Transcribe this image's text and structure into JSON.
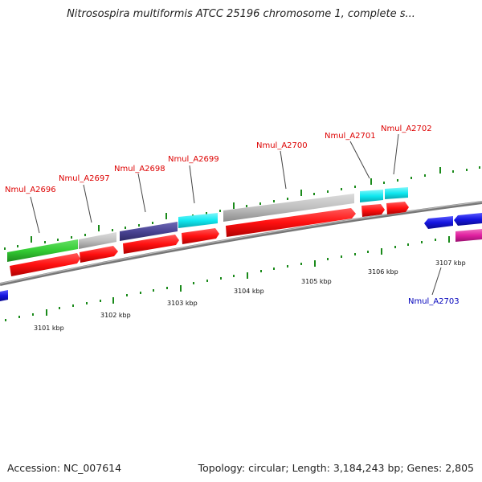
{
  "header": {
    "title": "Nitrosospira multiformis ATCC 25196 chromosome 1, complete s..."
  },
  "footer": {
    "accession": "Accession: NC_007614",
    "summary": "Topology: circular; Length: 3,184,243 bp; Genes: 2,805"
  },
  "axis": {
    "ticks": [
      "3101 kbp",
      "3102 kbp",
      "3103 kbp",
      "3104 kbp",
      "3105 kbp",
      "3106 kbp",
      "3107 kbp"
    ]
  },
  "genes": [
    {
      "label": "Nmul_A2696",
      "strand": "forward",
      "color": "#dd0000"
    },
    {
      "label": "Nmul_A2697",
      "strand": "forward",
      "color": "#dd0000"
    },
    {
      "label": "Nmul_A2698",
      "strand": "forward",
      "color": "#dd0000"
    },
    {
      "label": "Nmul_A2699",
      "strand": "forward",
      "color": "#dd0000"
    },
    {
      "label": "Nmul_A2700",
      "strand": "forward",
      "color": "#dd0000"
    },
    {
      "label": "Nmul_A2701",
      "strand": "forward",
      "color": "#dd0000"
    },
    {
      "label": "Nmul_A2702",
      "strand": "forward",
      "color": "#dd0000"
    },
    {
      "label": "Nmul_A2703",
      "strand": "reverse",
      "color": "#0000bb"
    }
  ],
  "colors": {
    "forward_gene": "#ff1010",
    "reverse_gene": "#1515e0",
    "track_green": "#33cc33",
    "track_gray": "#c0c0c0",
    "track_purple": "#4a4495",
    "track_cyan": "#10e8f0",
    "track_magenta": "#e020a0",
    "backbone": "#888888",
    "tick_green": "#1a8a1a"
  }
}
